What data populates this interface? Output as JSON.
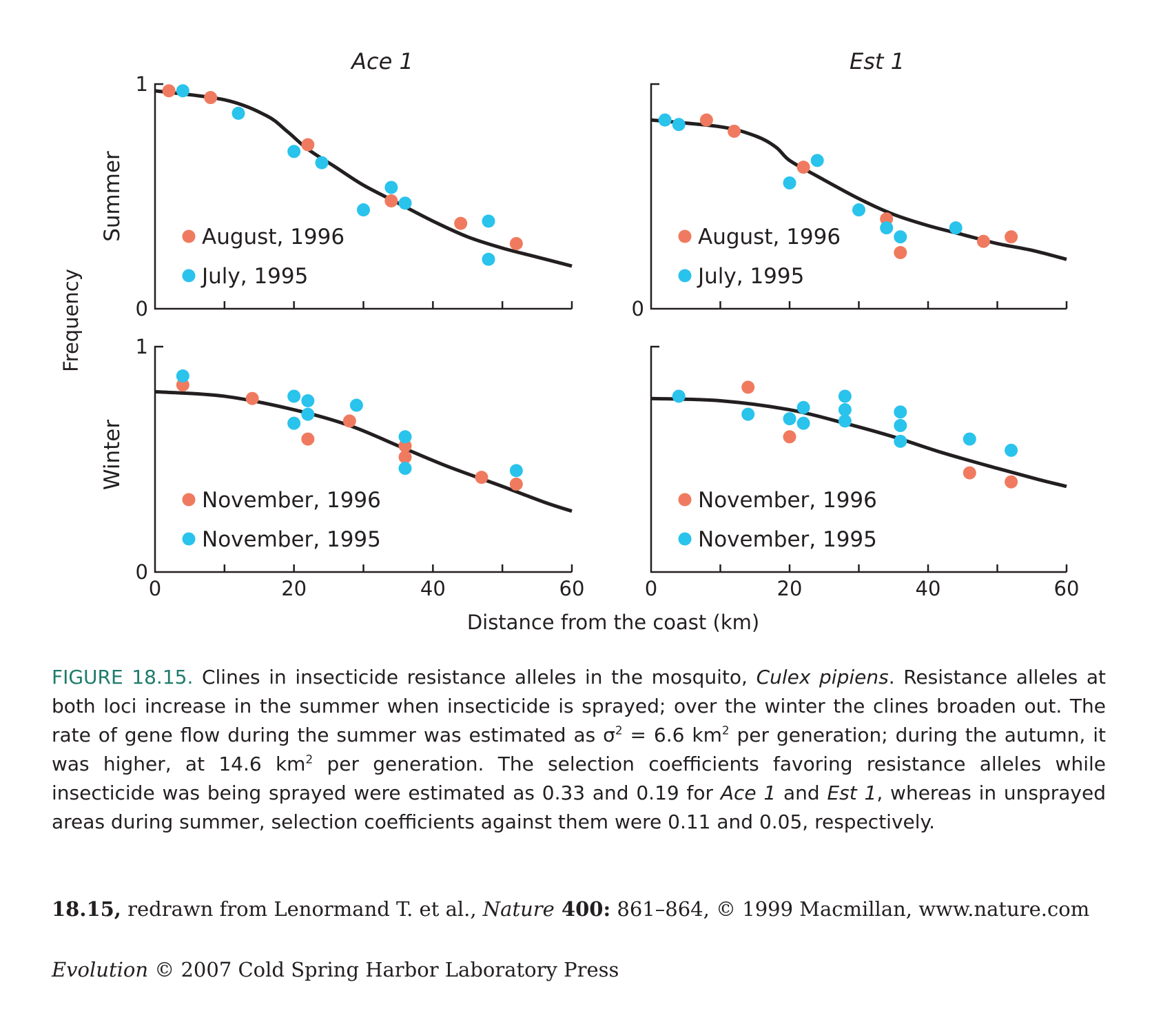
{
  "colors": {
    "series_1996": "#f07a5f",
    "series_1995": "#29c3ec",
    "curve": "#231f20",
    "caption_accent": "#1e7b6b"
  },
  "figure": {
    "y_axis_title": "Frequency",
    "x_axis_title": "Distance from the coast (km)",
    "column_titles": [
      "Ace 1",
      "Est 1"
    ],
    "row_labels": [
      "Summer",
      "Winter"
    ]
  },
  "chart_data": [
    {
      "type": "scatter",
      "title": "Ace 1",
      "row": "Summer",
      "xlim": [
        0,
        60
      ],
      "ylim": [
        0,
        1
      ],
      "x_tick_labels": [],
      "y_tick_labels": [
        "0",
        "1"
      ],
      "series": [
        {
          "name": "August, 1996",
          "color": "#f07a5f",
          "points": [
            [
              2,
              0.97
            ],
            [
              8,
              0.94
            ],
            [
              22,
              0.73
            ],
            [
              34,
              0.48
            ],
            [
              44,
              0.38
            ],
            [
              52,
              0.29
            ]
          ]
        },
        {
          "name": "July, 1995",
          "color": "#29c3ec",
          "points": [
            [
              4,
              0.97
            ],
            [
              12,
              0.87
            ],
            [
              20,
              0.7
            ],
            [
              24,
              0.65
            ],
            [
              30,
              0.44
            ],
            [
              34,
              0.54
            ],
            [
              36,
              0.47
            ],
            [
              48,
              0.39
            ],
            [
              48,
              0.22
            ]
          ]
        }
      ],
      "fit_curve": [
        [
          0,
          0.97
        ],
        [
          10,
          0.93
        ],
        [
          16,
          0.86
        ],
        [
          19,
          0.79
        ],
        [
          22,
          0.71
        ],
        [
          26,
          0.63
        ],
        [
          30,
          0.55
        ],
        [
          35,
          0.47
        ],
        [
          40,
          0.39
        ],
        [
          45,
          0.32
        ],
        [
          50,
          0.27
        ],
        [
          55,
          0.23
        ],
        [
          60,
          0.19
        ]
      ]
    },
    {
      "type": "scatter",
      "title": "Est 1",
      "row": "Summer",
      "xlim": [
        0,
        60
      ],
      "ylim": [
        0,
        1
      ],
      "x_tick_labels": [],
      "y_tick_labels": [
        "0"
      ],
      "series": [
        {
          "name": "August, 1996",
          "color": "#f07a5f",
          "points": [
            [
              8,
              0.84
            ],
            [
              12,
              0.79
            ],
            [
              22,
              0.63
            ],
            [
              34,
              0.4
            ],
            [
              36,
              0.25
            ],
            [
              48,
              0.3
            ],
            [
              52,
              0.32
            ]
          ]
        },
        {
          "name": "July, 1995",
          "color": "#29c3ec",
          "points": [
            [
              2,
              0.84
            ],
            [
              4,
              0.82
            ],
            [
              20,
              0.56
            ],
            [
              24,
              0.66
            ],
            [
              30,
              0.44
            ],
            [
              34,
              0.36
            ],
            [
              36,
              0.32
            ],
            [
              44,
              0.36
            ]
          ]
        }
      ],
      "fit_curve": [
        [
          0,
          0.84
        ],
        [
          10,
          0.81
        ],
        [
          15,
          0.77
        ],
        [
          18,
          0.72
        ],
        [
          20,
          0.66
        ],
        [
          24,
          0.59
        ],
        [
          30,
          0.49
        ],
        [
          35,
          0.42
        ],
        [
          40,
          0.37
        ],
        [
          45,
          0.33
        ],
        [
          50,
          0.29
        ],
        [
          55,
          0.26
        ],
        [
          60,
          0.22
        ]
      ]
    },
    {
      "type": "scatter",
      "title": "Ace 1",
      "row": "Winter",
      "xlim": [
        0,
        60
      ],
      "ylim": [
        0,
        1
      ],
      "x_tick_labels": [
        "0",
        "20",
        "40",
        "60"
      ],
      "y_tick_labels": [
        "0",
        "1"
      ],
      "series": [
        {
          "name": "November, 1996",
          "color": "#f07a5f",
          "points": [
            [
              4,
              0.83
            ],
            [
              14,
              0.77
            ],
            [
              22,
              0.59
            ],
            [
              28,
              0.67
            ],
            [
              36,
              0.56
            ],
            [
              36,
              0.51
            ],
            [
              47,
              0.42
            ],
            [
              52,
              0.39
            ]
          ]
        },
        {
          "name": "November, 1995",
          "color": "#29c3ec",
          "points": [
            [
              4,
              0.87
            ],
            [
              20,
              0.78
            ],
            [
              20,
              0.66
            ],
            [
              22,
              0.76
            ],
            [
              22,
              0.7
            ],
            [
              29,
              0.74
            ],
            [
              36,
              0.6
            ],
            [
              36,
              0.46
            ],
            [
              52,
              0.45
            ]
          ]
        }
      ],
      "fit_curve": [
        [
          0,
          0.8
        ],
        [
          10,
          0.78
        ],
        [
          20,
          0.72
        ],
        [
          28,
          0.65
        ],
        [
          35,
          0.56
        ],
        [
          42,
          0.47
        ],
        [
          50,
          0.38
        ],
        [
          56,
          0.31
        ],
        [
          60,
          0.27
        ]
      ]
    },
    {
      "type": "scatter",
      "title": "Est 1",
      "row": "Winter",
      "xlim": [
        0,
        60
      ],
      "ylim": [
        0,
        1
      ],
      "x_tick_labels": [
        "0",
        "20",
        "40",
        "60"
      ],
      "y_tick_labels": [],
      "series": [
        {
          "name": "November, 1996",
          "color": "#f07a5f",
          "points": [
            [
              14,
              0.82
            ],
            [
              20,
              0.6
            ],
            [
              46,
              0.44
            ],
            [
              52,
              0.4
            ]
          ]
        },
        {
          "name": "November, 1995",
          "color": "#29c3ec",
          "points": [
            [
              4,
              0.78
            ],
            [
              14,
              0.7
            ],
            [
              20,
              0.68
            ],
            [
              22,
              0.73
            ],
            [
              22,
              0.66
            ],
            [
              28,
              0.78
            ],
            [
              28,
              0.72
            ],
            [
              28,
              0.67
            ],
            [
              36,
              0.71
            ],
            [
              36,
              0.65
            ],
            [
              36,
              0.58
            ],
            [
              46,
              0.59
            ],
            [
              52,
              0.54
            ]
          ]
        }
      ],
      "fit_curve": [
        [
          0,
          0.77
        ],
        [
          10,
          0.76
        ],
        [
          20,
          0.72
        ],
        [
          28,
          0.66
        ],
        [
          35,
          0.6
        ],
        [
          42,
          0.53
        ],
        [
          50,
          0.46
        ],
        [
          56,
          0.41
        ],
        [
          60,
          0.38
        ]
      ]
    }
  ],
  "caption": {
    "label": "FIGURE 18.15.",
    "part1": " Clines in insecticide resistance alleles in the mosquito, ",
    "species": "Culex pipiens",
    "part2": ". Resistance alleles at both loci increase in the summer when insecticide is sprayed; over the winter the clines broaden out. The rate of gene flow during the summer was estimated as σ",
    "sup1": "2",
    "part3": " = 6.6 km",
    "sup2": "2",
    "part4": " per generation; during the autumn, it was higher, at 14.6 km",
    "sup3": "2",
    "part5": " per generation. The selection coefficients favoring resistance alleles while insecticide was being sprayed were estimated as 0.33 and 0.19 for ",
    "locus1": "Ace 1",
    "part6": " and ",
    "locus2": "Est 1",
    "part7": ", whereas in unsprayed areas during summer, selection coefficients against them were 0.11 and 0.05, respectively."
  },
  "credit": {
    "ref_label": "18.15,",
    "ref_text1": " redrawn from Lenormand T. et al., ",
    "journal": "Nature",
    "volume": " 400:",
    "ref_text2": " 861–864, © 1999 Macmillan, www.nature.com"
  },
  "publisher": {
    "book": "Evolution",
    "text": " © 2007 Cold Spring Harbor Laboratory Press"
  }
}
